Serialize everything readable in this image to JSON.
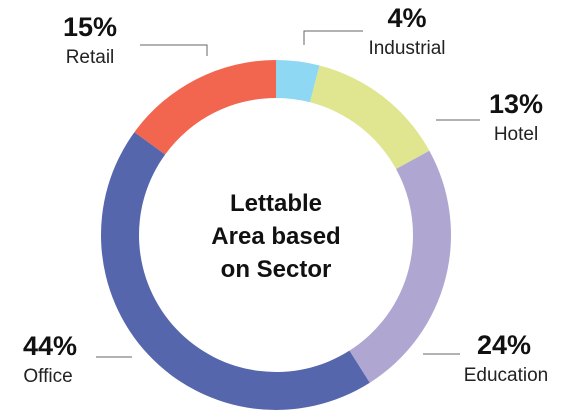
{
  "chart_data": {
    "type": "pie",
    "style": "donut",
    "title_lines": [
      "Lettable",
      "Area based",
      "on Sector"
    ],
    "categories": [
      "Industrial",
      "Hotel",
      "Education",
      "Office",
      "Retail"
    ],
    "values": [
      4,
      13,
      24,
      44,
      15
    ],
    "labels": [
      "4%",
      "13%",
      "24%",
      "44%",
      "15%"
    ],
    "colors": [
      "#8ed8f4",
      "#dfe68f",
      "#b0a6d2",
      "#5566ad",
      "#f26650"
    ]
  }
}
